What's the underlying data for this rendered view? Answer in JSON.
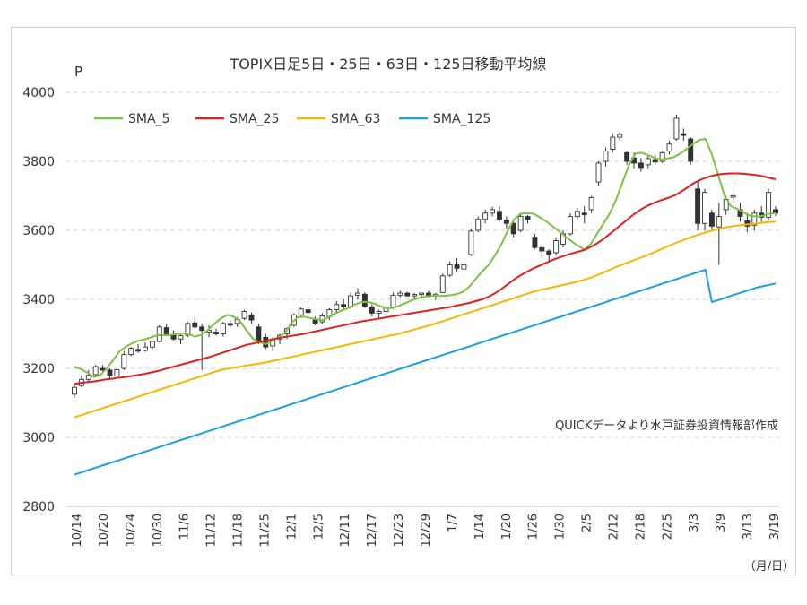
{
  "chart_data": {
    "type": "candlestick-with-lines",
    "title": "TOPIX日足5日・25日・63日・125日移動平均線",
    "ylabel": "P",
    "xunit_label": "（月/日）",
    "source_note": "QUICKデータより水戸証券投資情報部作成",
    "ylim": [
      2800,
      4000
    ],
    "yticks": [
      2800,
      3000,
      3200,
      3400,
      3600,
      3800,
      4000
    ],
    "grid": "horizontal-dashed",
    "legend_position": "top-left",
    "x_tick_labels": [
      "10/14",
      "10/20",
      "10/24",
      "10/30",
      "11/6",
      "11/12",
      "11/18",
      "11/25",
      "12/1",
      "12/5",
      "12/11",
      "12/17",
      "12/23",
      "12/29",
      "1/7",
      "1/14",
      "1/20",
      "1/26",
      "1/30",
      "2/5",
      "2/12",
      "2/18",
      "2/25",
      "3/3",
      "3/9",
      "3/13",
      "3/19"
    ],
    "series": [
      {
        "name": "SMA_5",
        "color": "#7dc242",
        "values": [
          3205,
          3198,
          3188,
          3175,
          3180,
          3198,
          3222,
          3248,
          3262,
          3272,
          3280,
          3284,
          3290,
          3296,
          3296,
          3296,
          3300,
          3302,
          3298,
          3292,
          3298,
          3312,
          3330,
          3345,
          3355,
          3350,
          3336,
          3310,
          3286,
          3276,
          3270,
          3280,
          3290,
          3302,
          3330,
          3348,
          3350,
          3346,
          3342,
          3340,
          3350,
          3360,
          3368,
          3375,
          3385,
          3392,
          3393,
          3388,
          3380,
          3374,
          3375,
          3382,
          3390,
          3398,
          3404,
          3408,
          3410,
          3410,
          3410,
          3412,
          3415,
          3422,
          3438,
          3460,
          3482,
          3500,
          3528,
          3560,
          3600,
          3632,
          3648,
          3650,
          3648,
          3638,
          3626,
          3612,
          3598,
          3582,
          3568,
          3555,
          3545,
          3560,
          3590,
          3620,
          3650,
          3690,
          3740,
          3790,
          3822,
          3825,
          3818,
          3810,
          3805,
          3808,
          3812,
          3822,
          3835,
          3850,
          3862,
          3865,
          3820,
          3760,
          3700,
          3670,
          3662,
          3652,
          3642,
          3640,
          3642,
          3648,
          3650
        ]
      },
      {
        "name": "SMA_25",
        "color": "#e02020",
        "values": [
          3155,
          3158,
          3160,
          3162,
          3165,
          3168,
          3170,
          3173,
          3175,
          3178,
          3181,
          3184,
          3188,
          3192,
          3197,
          3202,
          3207,
          3212,
          3217,
          3222,
          3227,
          3232,
          3238,
          3244,
          3250,
          3256,
          3262,
          3268,
          3272,
          3276,
          3280,
          3284,
          3288,
          3291,
          3294,
          3297,
          3300,
          3304,
          3308,
          3312,
          3316,
          3320,
          3324,
          3328,
          3332,
          3336,
          3339,
          3342,
          3345,
          3348,
          3351,
          3354,
          3357,
          3360,
          3363,
          3366,
          3369,
          3372,
          3375,
          3378,
          3382,
          3386,
          3390,
          3395,
          3400,
          3408,
          3418,
          3430,
          3444,
          3458,
          3470,
          3480,
          3490,
          3498,
          3506,
          3514,
          3521,
          3527,
          3533,
          3538,
          3543,
          3552,
          3562,
          3575,
          3590,
          3605,
          3620,
          3635,
          3650,
          3662,
          3672,
          3680,
          3687,
          3693,
          3700,
          3710,
          3722,
          3735,
          3745,
          3752,
          3758,
          3762,
          3764,
          3765,
          3765,
          3764,
          3762,
          3760,
          3757,
          3752,
          3748
        ]
      },
      {
        "name": "SMA_63",
        "color": "#f5b800",
        "values": [
          3058,
          3064,
          3070,
          3076,
          3082,
          3088,
          3094,
          3100,
          3106,
          3112,
          3118,
          3124,
          3130,
          3136,
          3142,
          3148,
          3154,
          3160,
          3166,
          3172,
          3178,
          3184,
          3190,
          3195,
          3199,
          3202,
          3205,
          3208,
          3211,
          3214,
          3217,
          3221,
          3225,
          3229,
          3233,
          3237,
          3241,
          3245,
          3249,
          3253,
          3257,
          3261,
          3265,
          3269,
          3273,
          3277,
          3281,
          3285,
          3289,
          3293,
          3297,
          3301,
          3306,
          3311,
          3316,
          3321,
          3326,
          3332,
          3338,
          3344,
          3350,
          3356,
          3362,
          3368,
          3374,
          3380,
          3386,
          3392,
          3398,
          3404,
          3410,
          3416,
          3422,
          3427,
          3431,
          3435,
          3439,
          3443,
          3447,
          3452,
          3457,
          3463,
          3470,
          3478,
          3486,
          3494,
          3501,
          3508,
          3515,
          3522,
          3529,
          3537,
          3545,
          3553,
          3561,
          3568,
          3575,
          3582,
          3588,
          3594,
          3599,
          3604,
          3608,
          3611,
          3614,
          3616,
          3618,
          3620,
          3622,
          3624,
          3625
        ]
      },
      {
        "name": "SMA_125",
        "color": "#1aa0dc",
        "values": [
          2892,
          2898,
          2904,
          2910,
          2916,
          2922,
          2928,
          2934,
          2940,
          2946,
          2952,
          2958,
          2964,
          2970,
          2976,
          2982,
          2988,
          2994,
          3000,
          3006,
          3012,
          3018,
          3024,
          3030,
          3036,
          3042,
          3048,
          3054,
          3060,
          3066,
          3072,
          3078,
          3084,
          3090,
          3096,
          3102,
          3108,
          3114,
          3120,
          3126,
          3132,
          3138,
          3144,
          3150,
          3156,
          3162,
          3168,
          3174,
          3180,
          3186,
          3192,
          3198,
          3204,
          3210,
          3216,
          3222,
          3228,
          3234,
          3240,
          3246,
          3252,
          3258,
          3264,
          3270,
          3276,
          3282,
          3288,
          3294,
          3300,
          3306,
          3312,
          3318,
          3324,
          3330,
          3336,
          3342,
          3348,
          3354,
          3360,
          3366,
          3372,
          3378,
          3384,
          3390,
          3396,
          3402,
          3408,
          3414,
          3420,
          3426,
          3432,
          3438,
          3444,
          3450,
          3456,
          3462,
          3468,
          3474,
          3480,
          3486,
          3392,
          3398,
          3404,
          3410,
          3416,
          3422,
          3428,
          3434,
          3438,
          3442,
          3446
        ]
      }
    ],
    "candles_ohlc": [
      [
        3125,
        3155,
        3115,
        3145
      ],
      [
        3150,
        3180,
        3145,
        3168
      ],
      [
        3168,
        3195,
        3160,
        3180
      ],
      [
        3182,
        3210,
        3178,
        3205
      ],
      [
        3200,
        3210,
        3188,
        3195
      ],
      [
        3195,
        3200,
        3170,
        3178
      ],
      [
        3178,
        3200,
        3172,
        3196
      ],
      [
        3200,
        3250,
        3195,
        3240
      ],
      [
        3240,
        3262,
        3235,
        3258
      ],
      [
        3255,
        3270,
        3245,
        3250
      ],
      [
        3252,
        3275,
        3248,
        3262
      ],
      [
        3262,
        3280,
        3255,
        3278
      ],
      [
        3278,
        3325,
        3275,
        3320
      ],
      [
        3318,
        3330,
        3295,
        3300
      ],
      [
        3298,
        3310,
        3280,
        3285
      ],
      [
        3285,
        3300,
        3270,
        3295
      ],
      [
        3296,
        3335,
        3290,
        3330
      ],
      [
        3332,
        3348,
        3315,
        3320
      ],
      [
        3320,
        3330,
        3195,
        3310
      ],
      [
        3305,
        3325,
        3290,
        3310
      ],
      [
        3305,
        3315,
        3295,
        3300
      ],
      [
        3300,
        3335,
        3292,
        3330
      ],
      [
        3330,
        3340,
        3318,
        3325
      ],
      [
        3330,
        3348,
        3320,
        3342
      ],
      [
        3345,
        3370,
        3340,
        3365
      ],
      [
        3355,
        3362,
        3330,
        3340
      ],
      [
        3320,
        3330,
        3270,
        3280
      ],
      [
        3290,
        3300,
        3255,
        3262
      ],
      [
        3265,
        3290,
        3250,
        3285
      ],
      [
        3285,
        3300,
        3270,
        3296
      ],
      [
        3300,
        3318,
        3285,
        3315
      ],
      [
        3325,
        3360,
        3320,
        3355
      ],
      [
        3355,
        3378,
        3350,
        3372
      ],
      [
        3370,
        3380,
        3355,
        3362
      ],
      [
        3340,
        3350,
        3325,
        3330
      ],
      [
        3335,
        3360,
        3330,
        3352
      ],
      [
        3350,
        3375,
        3340,
        3370
      ],
      [
        3370,
        3395,
        3360,
        3385
      ],
      [
        3385,
        3400,
        3370,
        3378
      ],
      [
        3378,
        3420,
        3372,
        3410
      ],
      [
        3412,
        3432,
        3400,
        3418
      ],
      [
        3415,
        3420,
        3375,
        3380
      ],
      [
        3378,
        3385,
        3350,
        3360
      ],
      [
        3360,
        3370,
        3345,
        3365
      ],
      [
        3365,
        3380,
        3355,
        3375
      ],
      [
        3378,
        3420,
        3372,
        3412
      ],
      [
        3412,
        3425,
        3405,
        3418
      ],
      [
        3418,
        3422,
        3408,
        3410
      ],
      [
        3410,
        3418,
        3400,
        3414
      ],
      [
        3414,
        3420,
        3405,
        3418
      ],
      [
        3418,
        3425,
        3405,
        3410
      ],
      [
        3410,
        3418,
        3398,
        3415
      ],
      [
        3420,
        3475,
        3418,
        3468
      ],
      [
        3470,
        3510,
        3465,
        3500
      ],
      [
        3500,
        3520,
        3480,
        3490
      ],
      [
        3488,
        3505,
        3478,
        3500
      ],
      [
        3530,
        3605,
        3525,
        3598
      ],
      [
        3600,
        3640,
        3595,
        3632
      ],
      [
        3632,
        3660,
        3620,
        3650
      ],
      [
        3650,
        3668,
        3640,
        3660
      ],
      [
        3655,
        3670,
        3625,
        3632
      ],
      [
        3630,
        3640,
        3605,
        3620
      ],
      [
        3620,
        3625,
        3580,
        3590
      ],
      [
        3600,
        3650,
        3595,
        3640
      ],
      [
        3640,
        3645,
        3620,
        3632
      ],
      [
        3580,
        3590,
        3545,
        3550
      ],
      [
        3550,
        3560,
        3520,
        3540
      ],
      [
        3540,
        3545,
        3510,
        3530
      ],
      [
        3535,
        3580,
        3528,
        3570
      ],
      [
        3560,
        3600,
        3550,
        3590
      ],
      [
        3590,
        3650,
        3585,
        3640
      ],
      [
        3640,
        3665,
        3630,
        3655
      ],
      [
        3650,
        3670,
        3620,
        3645
      ],
      [
        3660,
        3700,
        3650,
        3695
      ],
      [
        3740,
        3800,
        3730,
        3795
      ],
      [
        3800,
        3840,
        3785,
        3830
      ],
      [
        3835,
        3880,
        3825,
        3870
      ],
      [
        3870,
        3885,
        3860,
        3878
      ],
      [
        3825,
        3830,
        3790,
        3800
      ],
      [
        3810,
        3825,
        3780,
        3795
      ],
      [
        3795,
        3810,
        3770,
        3782
      ],
      [
        3790,
        3815,
        3780,
        3808
      ],
      [
        3805,
        3820,
        3790,
        3798
      ],
      [
        3800,
        3830,
        3795,
        3825
      ],
      [
        3830,
        3860,
        3820,
        3850
      ],
      [
        3865,
        3935,
        3860,
        3925
      ],
      [
        3880,
        3895,
        3860,
        3875
      ],
      [
        3865,
        3870,
        3790,
        3800
      ],
      [
        3720,
        3740,
        3600,
        3620
      ],
      [
        3620,
        3720,
        3600,
        3710
      ],
      [
        3650,
        3660,
        3600,
        3612
      ],
      [
        3610,
        3680,
        3500,
        3640
      ],
      [
        3660,
        3700,
        3645,
        3690
      ],
      [
        3700,
        3730,
        3680,
        3700
      ],
      [
        3660,
        3680,
        3625,
        3640
      ],
      [
        3628,
        3650,
        3595,
        3612
      ],
      [
        3615,
        3660,
        3600,
        3650
      ],
      [
        3650,
        3670,
        3625,
        3638
      ],
      [
        3638,
        3720,
        3630,
        3710
      ],
      [
        3660,
        3670,
        3642,
        3650
      ]
    ]
  }
}
